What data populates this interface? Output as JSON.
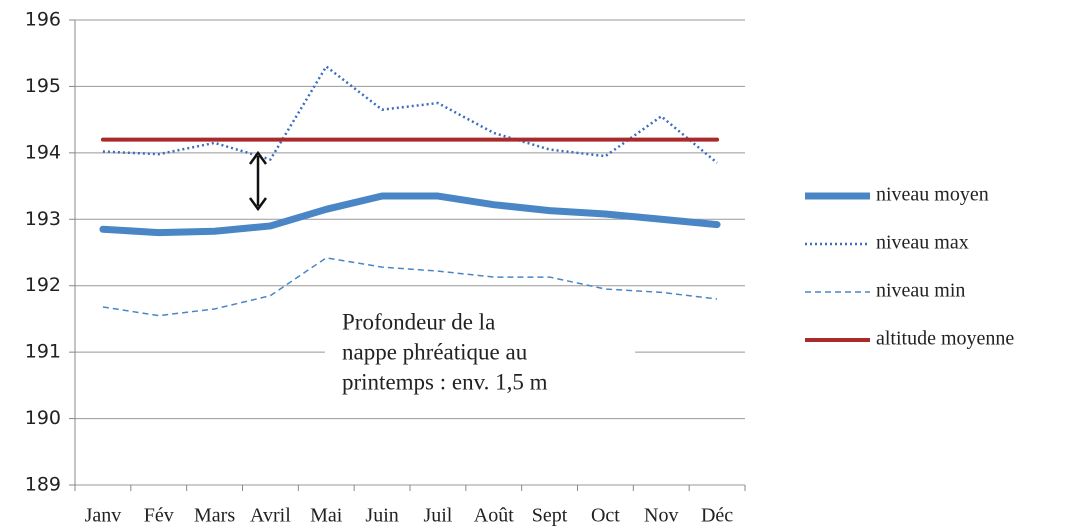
{
  "chart_data": {
    "type": "line",
    "categories": [
      "Janv",
      "Fév",
      "Mars",
      "Avril",
      "Mai",
      "Juin",
      "Juil",
      "Août",
      "Sept",
      "Oct",
      "Nov",
      "Déc"
    ],
    "series": [
      {
        "name": "niveau moyen",
        "color": "#4a86c5",
        "style": "solid",
        "linewidth": 7,
        "values": [
          192.85,
          192.8,
          192.82,
          192.9,
          193.15,
          193.35,
          193.35,
          193.22,
          193.13,
          193.08,
          193.0,
          192.92
        ]
      },
      {
        "name": "niveau max",
        "color": "#3a6cc0",
        "style": "dotted",
        "linewidth": 2.5,
        "values": [
          194.02,
          193.98,
          194.15,
          193.9,
          195.3,
          194.65,
          194.75,
          194.3,
          194.05,
          193.95,
          194.55,
          193.85
        ]
      },
      {
        "name": "niveau min",
        "color": "#4a86c5",
        "style": "dashed",
        "linewidth": 1.5,
        "values": [
          191.68,
          191.55,
          191.65,
          191.85,
          192.42,
          192.28,
          192.22,
          192.13,
          192.13,
          191.95,
          191.9,
          191.8
        ]
      },
      {
        "name": "altitude moyenne",
        "color": "#a82a2a",
        "style": "solid",
        "linewidth": 4,
        "values": [
          194.2,
          194.2,
          194.2,
          194.2,
          194.2,
          194.2,
          194.2,
          194.2,
          194.2,
          194.2,
          194.2,
          194.2
        ]
      }
    ],
    "annotation": [
      "Profondeur de la",
      "nappe phréatique au",
      "printemps : env. 1,5 m"
    ],
    "ylim": [
      189,
      196
    ],
    "yticks": [
      189,
      190,
      191,
      192,
      193,
      194,
      195,
      196
    ],
    "grid": true,
    "legend": "right"
  }
}
